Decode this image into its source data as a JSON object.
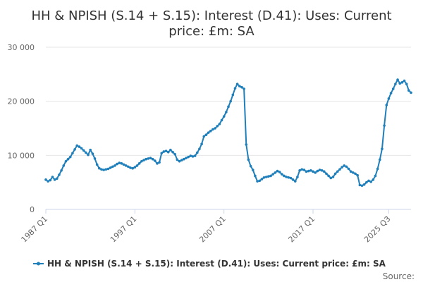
{
  "chart_data": {
    "type": "line",
    "title": "HH & NPISH (S.14 + S.15): Interest (D.41): Uses: Current price: £m: SA",
    "title_lines": [
      "HH & NPISH (S.14 + S.15): Interest (D.41): Uses: Current",
      "price: £m: SA"
    ],
    "xlabel": "",
    "ylabel": "",
    "x_start": "1987 Q1",
    "x_end": "2025 Q3",
    "x_ticks": [
      "1987 Q1",
      "1997 Q1",
      "2007 Q1",
      "2017 Q1",
      "2025 Q3"
    ],
    "y_ticks": [
      "0",
      "10 000",
      "20 000",
      "30 000"
    ],
    "ylim": [
      0,
      30000
    ],
    "grid": true,
    "legend_position": "bottom",
    "color": "#1f7fba",
    "series": [
      {
        "name": "HH & NPISH (S.14 + S.15): Interest (D.41): Uses: Current price: £m: SA",
        "values": [
          5500,
          5200,
          5400,
          6000,
          5500,
          5700,
          6400,
          7200,
          8100,
          8900,
          9300,
          9700,
          10400,
          11100,
          11800,
          11600,
          11300,
          10900,
          10500,
          10100,
          11000,
          10300,
          9400,
          8300,
          7600,
          7400,
          7300,
          7400,
          7500,
          7700,
          7900,
          8100,
          8400,
          8600,
          8500,
          8300,
          8100,
          7900,
          7700,
          7600,
          7800,
          8100,
          8500,
          8900,
          9100,
          9300,
          9400,
          9500,
          9300,
          9000,
          8500,
          8700,
          10400,
          10700,
          10800,
          10600,
          11000,
          10600,
          10200,
          9200,
          8900,
          9100,
          9300,
          9500,
          9700,
          9900,
          9800,
          9900,
          10500,
          11200,
          12100,
          13500,
          13800,
          14200,
          14500,
          14800,
          15000,
          15400,
          15800,
          16500,
          17200,
          18000,
          19000,
          20000,
          21200,
          22400,
          23200,
          22800,
          22600,
          22300,
          12000,
          9200,
          8000,
          7300,
          6200,
          5200,
          5300,
          5600,
          5900,
          6000,
          6100,
          6200,
          6500,
          6800,
          7100,
          6900,
          6500,
          6200,
          6000,
          5900,
          5800,
          5500,
          5200,
          6000,
          7200,
          7400,
          7300,
          7000,
          7100,
          7200,
          7000,
          6800,
          7100,
          7300,
          7200,
          7000,
          6600,
          6200,
          5800,
          6000,
          6600,
          7000,
          7400,
          7800,
          8100,
          7900,
          7500,
          7000,
          6800,
          6600,
          6300,
          4500,
          4400,
          4600,
          5000,
          5300,
          5100,
          5500,
          6200,
          7500,
          9200,
          11200,
          15500,
          19300,
          20500,
          21500,
          22300,
          23200,
          24000,
          23300,
          23500,
          23800,
          23200,
          22000,
          21600
        ]
      }
    ]
  },
  "source_label": "Source:"
}
